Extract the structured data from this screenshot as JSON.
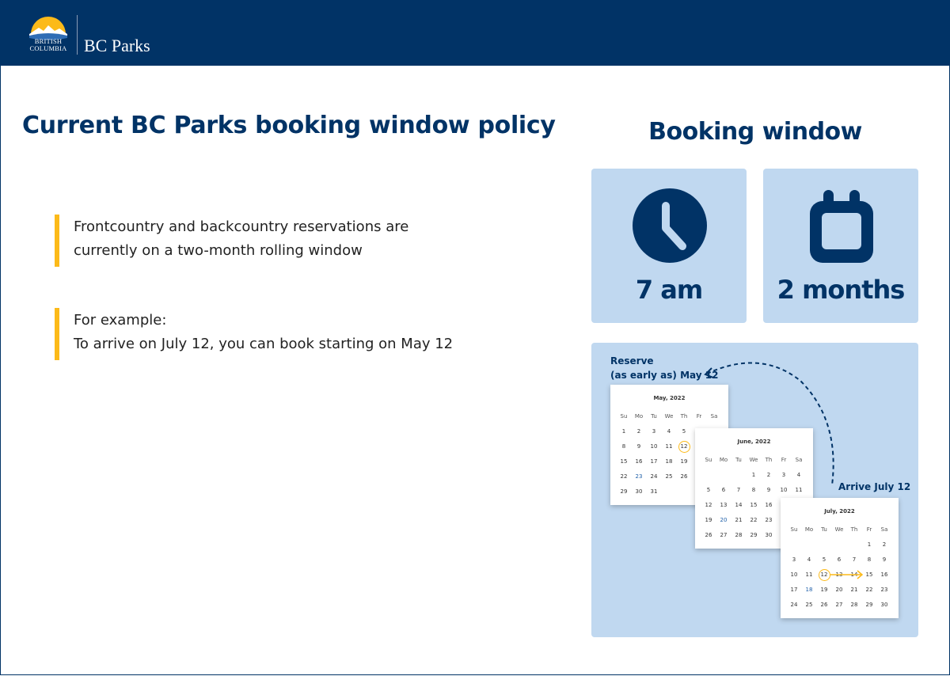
{
  "header": {
    "logo_text": [
      "BRITISH",
      "COLUMBIA"
    ],
    "brand": "BC Parks"
  },
  "main": {
    "title": "Current BC Parks booking window policy",
    "policy": {
      "line1": "Frontcountry and backcountry reservations are",
      "line2": "currently on a two-month rolling window"
    },
    "example": {
      "line1": "For example:",
      "line2": "To arrive on July 12, you can book starting on May 12"
    }
  },
  "booking": {
    "title": "Booking window",
    "cards": [
      {
        "icon": "clock-icon",
        "value": "7 am"
      },
      {
        "icon": "calendar-icon",
        "value": "2 months"
      }
    ],
    "reserve_label": [
      "Reserve",
      "(as early as) May 12"
    ],
    "arrive_label": "Arrive July 12",
    "weekdays": [
      "Su",
      "Mo",
      "Tu",
      "We",
      "Th",
      "Fr",
      "Sa"
    ],
    "calendars": [
      {
        "title": "May, 2022",
        "start_weekday": 0,
        "days": 31,
        "circled": 12,
        "highlight": 23
      },
      {
        "title": "June, 2022",
        "start_weekday": 3,
        "days": 30,
        "highlight": 20
      },
      {
        "title": "July, 2022",
        "start_weekday": 5,
        "days": 30,
        "circled": 12,
        "highlight": 18,
        "arrow_to": 14
      }
    ],
    "colors": {
      "navy": "#013366",
      "accent": "#fcba19",
      "panel": "#c0d8f0"
    }
  }
}
